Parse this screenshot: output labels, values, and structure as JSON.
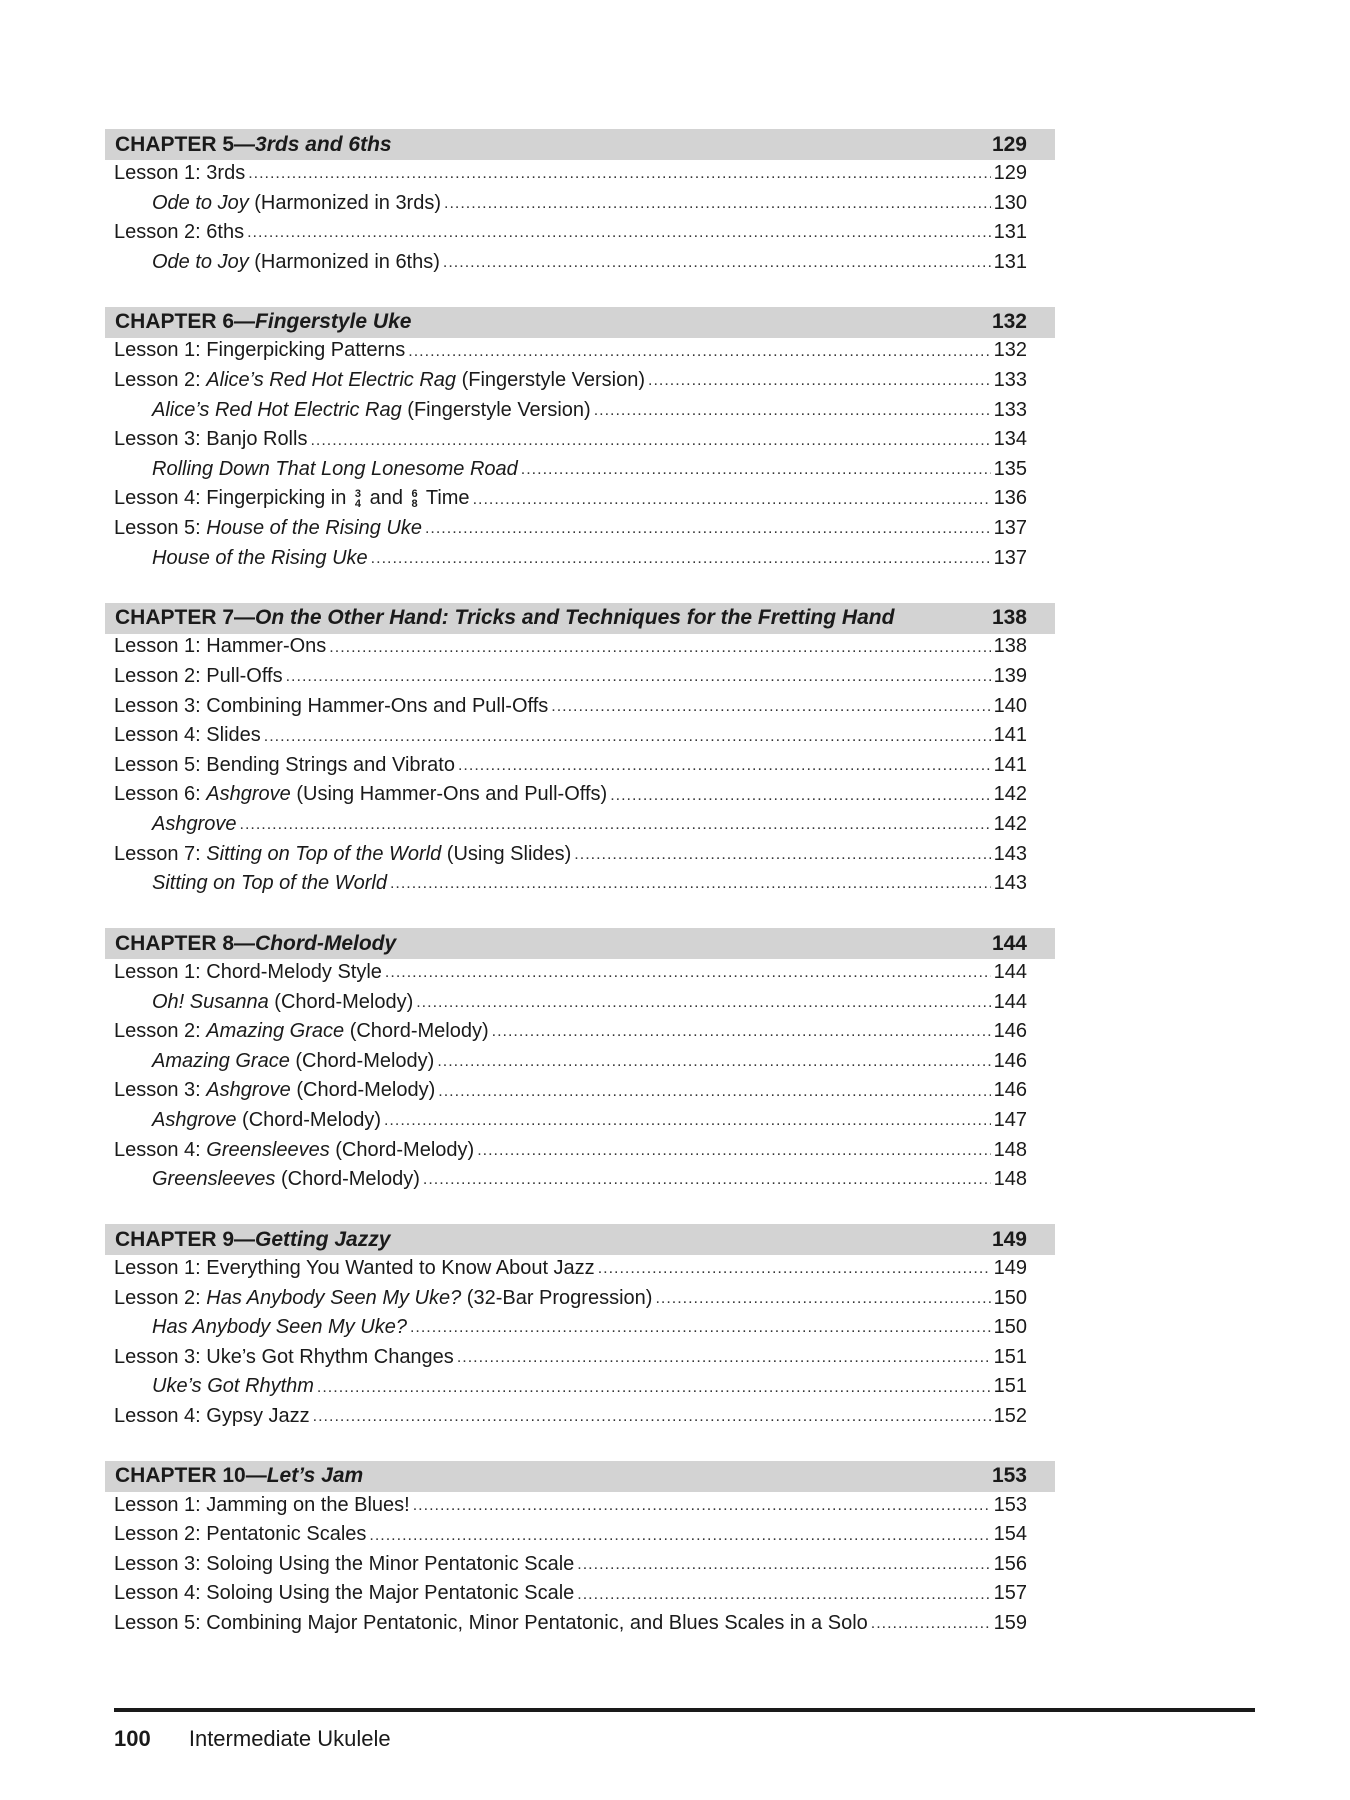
{
  "chapters": [
    {
      "label": "CHAPTER 5—",
      "subtitle": "3rds and 6ths",
      "page": "129",
      "entries": [
        {
          "sub": false,
          "parts": [
            {
              "t": "Lesson 1: 3rds"
            }
          ],
          "page": "129"
        },
        {
          "sub": true,
          "parts": [
            {
              "t": "Ode to Joy",
              "i": true
            },
            {
              "t": " (Harmonized in 3rds)"
            }
          ],
          "page": "130"
        },
        {
          "sub": false,
          "parts": [
            {
              "t": "Lesson 2: 6ths"
            }
          ],
          "page": "131"
        },
        {
          "sub": true,
          "parts": [
            {
              "t": "Ode to Joy",
              "i": true
            },
            {
              "t": " (Harmonized in 6ths)"
            }
          ],
          "page": "131"
        }
      ]
    },
    {
      "label": "CHAPTER 6—",
      "subtitle": "Fingerstyle Uke",
      "page": "132",
      "entries": [
        {
          "sub": false,
          "parts": [
            {
              "t": "Lesson 1: Fingerpicking Patterns"
            }
          ],
          "page": "132"
        },
        {
          "sub": false,
          "parts": [
            {
              "t": "Lesson 2: "
            },
            {
              "t": "Alice’s Red Hot Electric Rag",
              "i": true
            },
            {
              "t": " (Fingerstyle Version)"
            }
          ],
          "page": "133"
        },
        {
          "sub": true,
          "parts": [
            {
              "t": "Alice’s Red Hot Electric Rag",
              "i": true
            },
            {
              "t": " (Fingerstyle Version)"
            }
          ],
          "page": "133"
        },
        {
          "sub": false,
          "parts": [
            {
              "t": "Lesson 3: Banjo Rolls"
            }
          ],
          "page": "134"
        },
        {
          "sub": true,
          "parts": [
            {
              "t": "Rolling Down That Long Lonesome Road",
              "i": true
            }
          ],
          "page": "135"
        },
        {
          "sub": false,
          "parts": [
            {
              "t": "Lesson 4: Fingerpicking in "
            },
            {
              "ts": [
                "3",
                "4"
              ]
            },
            {
              "t": " and "
            },
            {
              "ts": [
                "6",
                "8"
              ]
            },
            {
              "t": " Time"
            }
          ],
          "page": "136"
        },
        {
          "sub": false,
          "parts": [
            {
              "t": "Lesson 5: "
            },
            {
              "t": "House of the Rising Uke",
              "i": true
            }
          ],
          "page": "137"
        },
        {
          "sub": true,
          "parts": [
            {
              "t": "House of the Rising Uke",
              "i": true
            }
          ],
          "page": "137"
        }
      ]
    },
    {
      "label": "CHAPTER 7—",
      "subtitle": "On the Other Hand: Tricks and Techniques for the Fretting Hand",
      "page": "138",
      "entries": [
        {
          "sub": false,
          "parts": [
            {
              "t": "Lesson 1: Hammer-Ons"
            }
          ],
          "page": "138"
        },
        {
          "sub": false,
          "parts": [
            {
              "t": "Lesson 2:  Pull-Offs"
            }
          ],
          "page": "139"
        },
        {
          "sub": false,
          "parts": [
            {
              "t": "Lesson 3: Combining Hammer-Ons and Pull-Offs"
            }
          ],
          "page": "140"
        },
        {
          "sub": false,
          "parts": [
            {
              "t": "Lesson 4: Slides"
            }
          ],
          "page": "141"
        },
        {
          "sub": false,
          "parts": [
            {
              "t": "Lesson 5: Bending Strings and Vibrato"
            }
          ],
          "page": "141"
        },
        {
          "sub": false,
          "parts": [
            {
              "t": "Lesson 6: "
            },
            {
              "t": "Ashgrove",
              "i": true
            },
            {
              "t": " (Using Hammer-Ons and Pull-Offs)"
            }
          ],
          "page": "142"
        },
        {
          "sub": true,
          "parts": [
            {
              "t": "Ashgrove",
              "i": true
            }
          ],
          "page": "142"
        },
        {
          "sub": false,
          "parts": [
            {
              "t": "Lesson 7: "
            },
            {
              "t": "Sitting on Top of the World",
              "i": true
            },
            {
              "t": " (Using Slides)"
            }
          ],
          "page": "143"
        },
        {
          "sub": true,
          "parts": [
            {
              "t": "Sitting on Top of the World",
              "i": true
            }
          ],
          "page": "143"
        }
      ]
    },
    {
      "label": "CHAPTER 8—",
      "subtitle": "Chord-Melody",
      "page": "144",
      "entries": [
        {
          "sub": false,
          "parts": [
            {
              "t": "Lesson 1: Chord-Melody Style"
            }
          ],
          "page": "144"
        },
        {
          "sub": true,
          "parts": [
            {
              "t": "Oh! Susanna",
              "i": true
            },
            {
              "t": " (Chord-Melody)"
            }
          ],
          "page": "144"
        },
        {
          "sub": false,
          "parts": [
            {
              "t": "Lesson 2: "
            },
            {
              "t": "Amazing Grace",
              "i": true
            },
            {
              "t": " (Chord-Melody)"
            }
          ],
          "page": "146"
        },
        {
          "sub": true,
          "parts": [
            {
              "t": "Amazing Grace",
              "i": true
            },
            {
              "t": " (Chord-Melody)"
            }
          ],
          "page": "146"
        },
        {
          "sub": false,
          "parts": [
            {
              "t": "Lesson 3: "
            },
            {
              "t": "Ashgrove",
              "i": true
            },
            {
              "t": " (Chord-Melody)"
            }
          ],
          "page": "146"
        },
        {
          "sub": true,
          "parts": [
            {
              "t": "Ashgrove",
              "i": true
            },
            {
              "t": " (Chord-Melody)"
            }
          ],
          "page": "147"
        },
        {
          "sub": false,
          "parts": [
            {
              "t": "Lesson 4: "
            },
            {
              "t": "Greensleeves",
              "i": true
            },
            {
              "t": " (Chord-Melody)"
            }
          ],
          "page": "148"
        },
        {
          "sub": true,
          "parts": [
            {
              "t": "Greensleeves",
              "i": true
            },
            {
              "t": " (Chord-Melody)"
            }
          ],
          "page": "148"
        }
      ]
    },
    {
      "label": "CHAPTER 9—",
      "subtitle": "Getting Jazzy",
      "page": "149",
      "entries": [
        {
          "sub": false,
          "parts": [
            {
              "t": "Lesson 1: Everything You Wanted to Know About Jazz"
            }
          ],
          "page": "149"
        },
        {
          "sub": false,
          "parts": [
            {
              "t": "Lesson 2: "
            },
            {
              "t": "Has Anybody Seen My Uke?",
              "i": true
            },
            {
              "t": " (32-Bar Progression)"
            }
          ],
          "page": "150"
        },
        {
          "sub": true,
          "parts": [
            {
              "t": "Has Anybody Seen My Uke?",
              "i": true
            }
          ],
          "page": "150"
        },
        {
          "sub": false,
          "parts": [
            {
              "t": "Lesson 3: Uke’s Got Rhythm Changes"
            }
          ],
          "page": "151"
        },
        {
          "sub": true,
          "parts": [
            {
              "t": "Uke’s Got Rhythm",
              "i": true
            }
          ],
          "page": "151"
        },
        {
          "sub": false,
          "parts": [
            {
              "t": "Lesson 4: Gypsy Jazz"
            }
          ],
          "page": "152"
        }
      ]
    },
    {
      "label": "CHAPTER 10—",
      "subtitle": "Let’s Jam",
      "page": "153",
      "entries": [
        {
          "sub": false,
          "parts": [
            {
              "t": "Lesson 1: Jamming on the Blues!"
            }
          ],
          "page": "153"
        },
        {
          "sub": false,
          "parts": [
            {
              "t": "Lesson 2: Pentatonic Scales"
            }
          ],
          "page": "154"
        },
        {
          "sub": false,
          "parts": [
            {
              "t": "Lesson 3: Soloing Using the Minor Pentatonic Scale"
            }
          ],
          "page": "156"
        },
        {
          "sub": false,
          "parts": [
            {
              "t": "Lesson 4: Soloing Using the Major Pentatonic Scale"
            }
          ],
          "page": "157"
        },
        {
          "sub": false,
          "parts": [
            {
              "t": "Lesson 5: Combining Major Pentatonic, Minor Pentatonic, and Blues Scales in a Solo"
            }
          ],
          "page": "159"
        }
      ]
    }
  ],
  "footer": {
    "page_number": "100",
    "book_title": "Intermediate Ukulele"
  },
  "colors": {
    "chapter_band": "#d3d3d3",
    "text": "#1a1a1a"
  }
}
